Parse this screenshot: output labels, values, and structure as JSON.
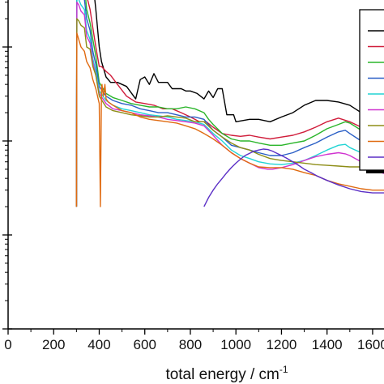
{
  "chart_data": {
    "type": "line",
    "title": "",
    "xlabel_main": "total energy / cm",
    "xlabel_sup": "-1",
    "ylabel": "",
    "xlim": [
      0,
      1650
    ],
    "x_ticks": [
      "0",
      "200",
      "400",
      "600",
      "800",
      "1000",
      "1200",
      "1400",
      "1600"
    ],
    "y_scale": "log",
    "y_decades": 4,
    "grid": false,
    "legend": {
      "placement": "top-right",
      "entries": 9
    },
    "series": [
      {
        "color": "#000000",
        "x": [
          300,
          302,
          310,
          320,
          335,
          345,
          360,
          372,
          385,
          400,
          410,
          430,
          450,
          480,
          520,
          560,
          580,
          600,
          620,
          640,
          660,
          700,
          720,
          760,
          780,
          800,
          830,
          860,
          880,
          900,
          920,
          940,
          960,
          990,
          1000,
          1060,
          1100,
          1150,
          1200,
          1250,
          1300,
          1350,
          1400,
          1450,
          1500,
          1550,
          1600,
          1650
        ],
        "y": [
          0.02,
          28,
          25,
          20,
          20,
          12,
          10,
          5,
          2.5,
          1.0,
          0.7,
          0.48,
          0.42,
          0.42,
          0.38,
          0.28,
          0.45,
          0.48,
          0.4,
          0.52,
          0.42,
          0.42,
          0.36,
          0.36,
          0.34,
          0.34,
          0.32,
          0.28,
          0.34,
          0.29,
          0.36,
          0.36,
          0.19,
          0.19,
          0.16,
          0.17,
          0.17,
          0.16,
          0.18,
          0.2,
          0.24,
          0.27,
          0.27,
          0.26,
          0.24,
          0.2,
          0.16,
          0.17
        ]
      },
      {
        "color": "#d01c3a",
        "x": [
          300,
          302,
          310,
          320,
          335,
          345,
          360,
          372,
          385,
          400,
          410,
          430,
          450,
          480,
          520,
          560,
          600,
          640,
          680,
          720,
          760,
          800,
          840,
          870,
          900,
          940,
          980,
          1020,
          1060,
          1100,
          1150,
          1200,
          1250,
          1300,
          1350,
          1400,
          1450,
          1500,
          1550,
          1600,
          1650
        ],
        "y": [
          0.02,
          10,
          9,
          7,
          6,
          3.5,
          2.5,
          1.6,
          1.0,
          0.62,
          0.62,
          0.55,
          0.5,
          0.4,
          0.3,
          0.26,
          0.25,
          0.24,
          0.22,
          0.22,
          0.2,
          0.18,
          0.16,
          0.16,
          0.14,
          0.12,
          0.115,
          0.112,
          0.115,
          0.11,
          0.105,
          0.11,
          0.115,
          0.125,
          0.14,
          0.16,
          0.175,
          0.16,
          0.14,
          0.12,
          0.11
        ]
      },
      {
        "color": "#2ab52a",
        "x": [
          300,
          302,
          310,
          320,
          335,
          345,
          360,
          372,
          385,
          400,
          430,
          460,
          500,
          540,
          580,
          620,
          660,
          700,
          740,
          780,
          820,
          860,
          880,
          900,
          940,
          980,
          1020,
          1060,
          1100,
          1150,
          1200,
          1250,
          1300,
          1350,
          1400,
          1450,
          1480,
          1500,
          1550,
          1600,
          1650
        ],
        "y": [
          0.02,
          8,
          7,
          5.5,
          4.5,
          2.5,
          1.8,
          1.2,
          0.8,
          0.42,
          0.32,
          0.29,
          0.27,
          0.25,
          0.24,
          0.23,
          0.23,
          0.22,
          0.22,
          0.23,
          0.22,
          0.2,
          0.17,
          0.15,
          0.12,
          0.105,
          0.1,
          0.1,
          0.095,
          0.09,
          0.09,
          0.095,
          0.1,
          0.115,
          0.135,
          0.15,
          0.16,
          0.155,
          0.13,
          0.1,
          0.09
        ]
      },
      {
        "color": "#2a5fc6",
        "x": [
          300,
          302,
          310,
          320,
          335,
          345,
          360,
          372,
          385,
          400,
          430,
          460,
          500,
          540,
          580,
          620,
          660,
          700,
          740,
          780,
          820,
          860,
          900,
          940,
          980,
          1020,
          1060,
          1100,
          1150,
          1200,
          1250,
          1300,
          1350,
          1400,
          1450,
          1480,
          1500,
          1550,
          1600,
          1650
        ],
        "y": [
          0.02,
          5,
          4.5,
          3.5,
          3.2,
          2.0,
          1.5,
          0.9,
          0.65,
          0.38,
          0.3,
          0.27,
          0.25,
          0.24,
          0.22,
          0.21,
          0.2,
          0.2,
          0.19,
          0.18,
          0.18,
          0.17,
          0.13,
          0.11,
          0.09,
          0.085,
          0.08,
          0.075,
          0.07,
          0.07,
          0.075,
          0.085,
          0.095,
          0.11,
          0.125,
          0.13,
          0.12,
          0.1,
          0.08,
          0.07
        ]
      },
      {
        "color": "#22d4d4",
        "x": [
          300,
          302,
          310,
          320,
          335,
          345,
          360,
          372,
          385,
          400,
          430,
          460,
          500,
          540,
          580,
          620,
          660,
          700,
          740,
          780,
          820,
          860,
          900,
          940,
          980,
          1020,
          1060,
          1100,
          1150,
          1200,
          1250,
          1300,
          1350,
          1400,
          1450,
          1480,
          1500,
          1550,
          1600,
          1650
        ],
        "y": [
          0.02,
          3.5,
          3.2,
          2.8,
          2.5,
          1.5,
          1.2,
          0.75,
          0.55,
          0.34,
          0.27,
          0.24,
          0.22,
          0.21,
          0.2,
          0.19,
          0.185,
          0.18,
          0.17,
          0.165,
          0.16,
          0.15,
          0.12,
          0.1,
          0.08,
          0.07,
          0.065,
          0.06,
          0.057,
          0.056,
          0.058,
          0.062,
          0.07,
          0.08,
          0.09,
          0.092,
          0.085,
          0.075,
          0.065,
          0.06
        ]
      },
      {
        "color": "#d033d0",
        "x": [
          300,
          302,
          310,
          320,
          335,
          345,
          360,
          372,
          385,
          400,
          430,
          460,
          500,
          540,
          580,
          620,
          660,
          700,
          740,
          780,
          820,
          860,
          900,
          940,
          980,
          1020,
          1060,
          1100,
          1140,
          1160,
          1200,
          1250,
          1300,
          1350,
          1400,
          1450,
          1480,
          1500,
          1550,
          1600,
          1650
        ],
        "y": [
          0.02,
          3,
          2.8,
          2.4,
          2.2,
          1.3,
          1.1,
          0.68,
          0.5,
          0.32,
          0.25,
          0.22,
          0.21,
          0.2,
          0.19,
          0.185,
          0.18,
          0.17,
          0.165,
          0.16,
          0.155,
          0.145,
          0.115,
          0.09,
          0.075,
          0.065,
          0.058,
          0.052,
          0.05,
          0.05,
          0.052,
          0.056,
          0.062,
          0.068,
          0.072,
          0.075,
          0.073,
          0.07,
          0.06,
          0.05,
          0.045
        ]
      },
      {
        "color": "#8d8d16",
        "x": [
          300,
          302,
          310,
          320,
          335,
          345,
          360,
          372,
          385,
          400,
          430,
          460,
          500,
          540,
          580,
          620,
          660,
          700,
          740,
          780,
          820,
          860,
          900,
          940,
          980,
          1020,
          1060,
          1100,
          1150,
          1200,
          1250,
          1300,
          1350,
          1400,
          1450,
          1500,
          1550,
          1600,
          1650
        ],
        "y": [
          0.02,
          2,
          1.9,
          1.7,
          1.6,
          1.0,
          0.95,
          0.62,
          0.5,
          0.3,
          0.23,
          0.21,
          0.2,
          0.19,
          0.185,
          0.18,
          0.18,
          0.185,
          0.18,
          0.175,
          0.16,
          0.16,
          0.13,
          0.11,
          0.095,
          0.085,
          0.08,
          0.072,
          0.065,
          0.062,
          0.06,
          0.058,
          0.056,
          0.055,
          0.054,
          0.053,
          0.053,
          0.052,
          0.052
        ]
      },
      {
        "color": "#e06a10",
        "x": [
          300,
          302,
          310,
          320,
          335,
          345,
          360,
          372,
          385,
          400,
          405,
          410,
          412,
          418,
          425,
          430,
          440,
          460,
          500,
          540,
          580,
          620,
          660,
          700,
          740,
          780,
          820,
          860,
          900,
          940,
          980,
          1020,
          1060,
          1100,
          1150,
          1200,
          1250,
          1300,
          1350,
          1400,
          1450,
          1500,
          1550,
          1600,
          1650
        ],
        "y": [
          0.02,
          1.4,
          1.2,
          1.0,
          0.9,
          0.7,
          0.6,
          0.45,
          0.36,
          0.25,
          0.02,
          0.36,
          0.4,
          0.3,
          0.4,
          0.28,
          0.26,
          0.24,
          0.21,
          0.2,
          0.18,
          0.17,
          0.165,
          0.16,
          0.155,
          0.145,
          0.135,
          0.12,
          0.105,
          0.09,
          0.075,
          0.065,
          0.058,
          0.053,
          0.052,
          0.052,
          0.05,
          0.046,
          0.043,
          0.038,
          0.035,
          0.033,
          0.031,
          0.03,
          0.03
        ]
      },
      {
        "color": "#5b2fc6",
        "x": [
          860,
          880,
          900,
          920,
          940,
          960,
          980,
          1000,
          1020,
          1040,
          1060,
          1080,
          1100,
          1120,
          1140,
          1160,
          1180,
          1200,
          1220,
          1240,
          1260,
          1280,
          1300,
          1330,
          1360,
          1400,
          1450,
          1500,
          1550,
          1600,
          1650
        ],
        "y": [
          0.02,
          0.025,
          0.03,
          0.035,
          0.04,
          0.046,
          0.052,
          0.058,
          0.064,
          0.07,
          0.074,
          0.078,
          0.08,
          0.082,
          0.081,
          0.078,
          0.074,
          0.07,
          0.066,
          0.062,
          0.058,
          0.054,
          0.05,
          0.046,
          0.042,
          0.038,
          0.034,
          0.031,
          0.029,
          0.028,
          0.028
        ]
      }
    ]
  }
}
